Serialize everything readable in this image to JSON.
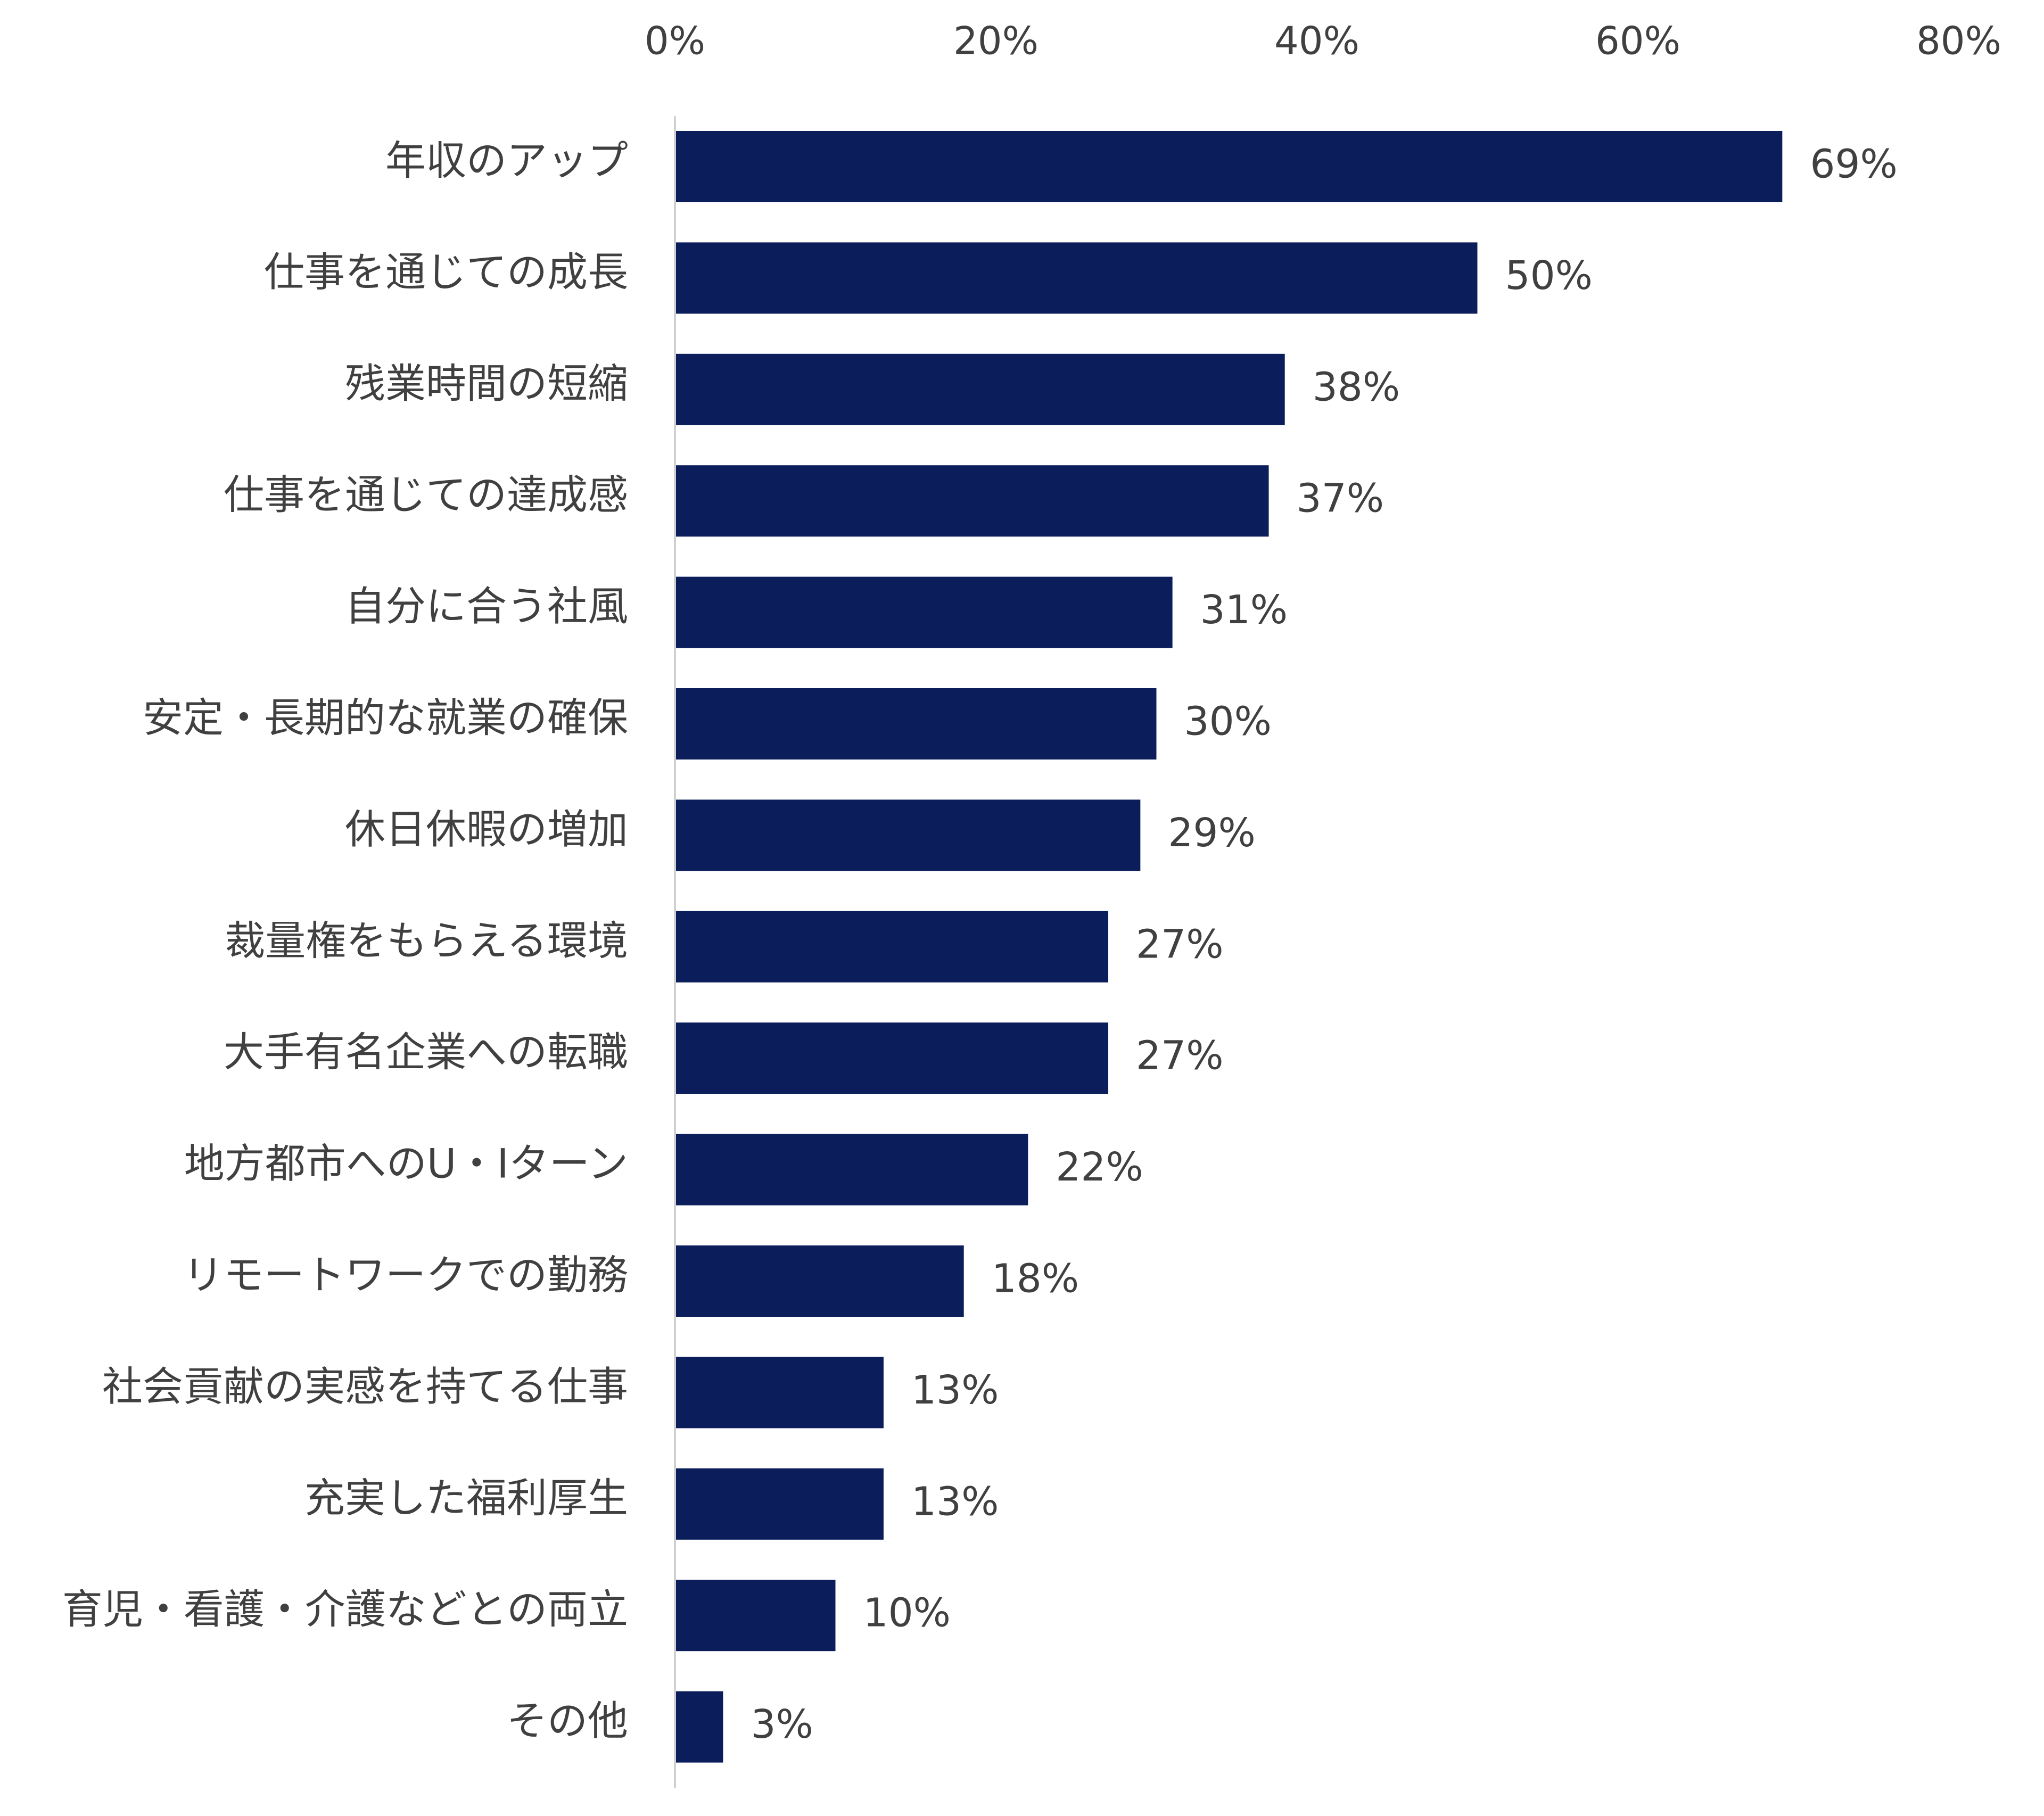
{
  "chart_data": {
    "type": "bar",
    "orientation": "horizontal",
    "title": "",
    "xlabel": "",
    "ylabel": "",
    "xlim": [
      0,
      80
    ],
    "x_ticks": [
      0,
      20,
      40,
      60,
      80
    ],
    "x_tick_labels": [
      "0%",
      "20%",
      "40%",
      "60%",
      "80%"
    ],
    "x_axis_position": "top",
    "grid": false,
    "bar_color": "#0b1e5b",
    "categories": [
      "年収のアップ",
      "仕事を通じての成長",
      "残業時間の短縮",
      "仕事を通じての達成感",
      "自分に合う社風",
      "安定・長期的な就業の確保",
      "休日休暇の増加",
      "裁量権をもらえる環境",
      "大手有名企業への転職",
      "地方都市へのU・Iターン",
      "リモートワークでの勤務",
      "社会貢献の実感を持てる仕事",
      "充実した福利厚生",
      "育児・看護・介護などとの両立",
      "その他"
    ],
    "values": [
      69,
      50,
      38,
      37,
      31,
      30,
      29,
      27,
      27,
      22,
      18,
      13,
      13,
      10,
      3
    ],
    "value_labels": [
      "69%",
      "50%",
      "38%",
      "37%",
      "31%",
      "30%",
      "29%",
      "27%",
      "27%",
      "22%",
      "18%",
      "13%",
      "13%",
      "10%",
      "3%"
    ]
  }
}
